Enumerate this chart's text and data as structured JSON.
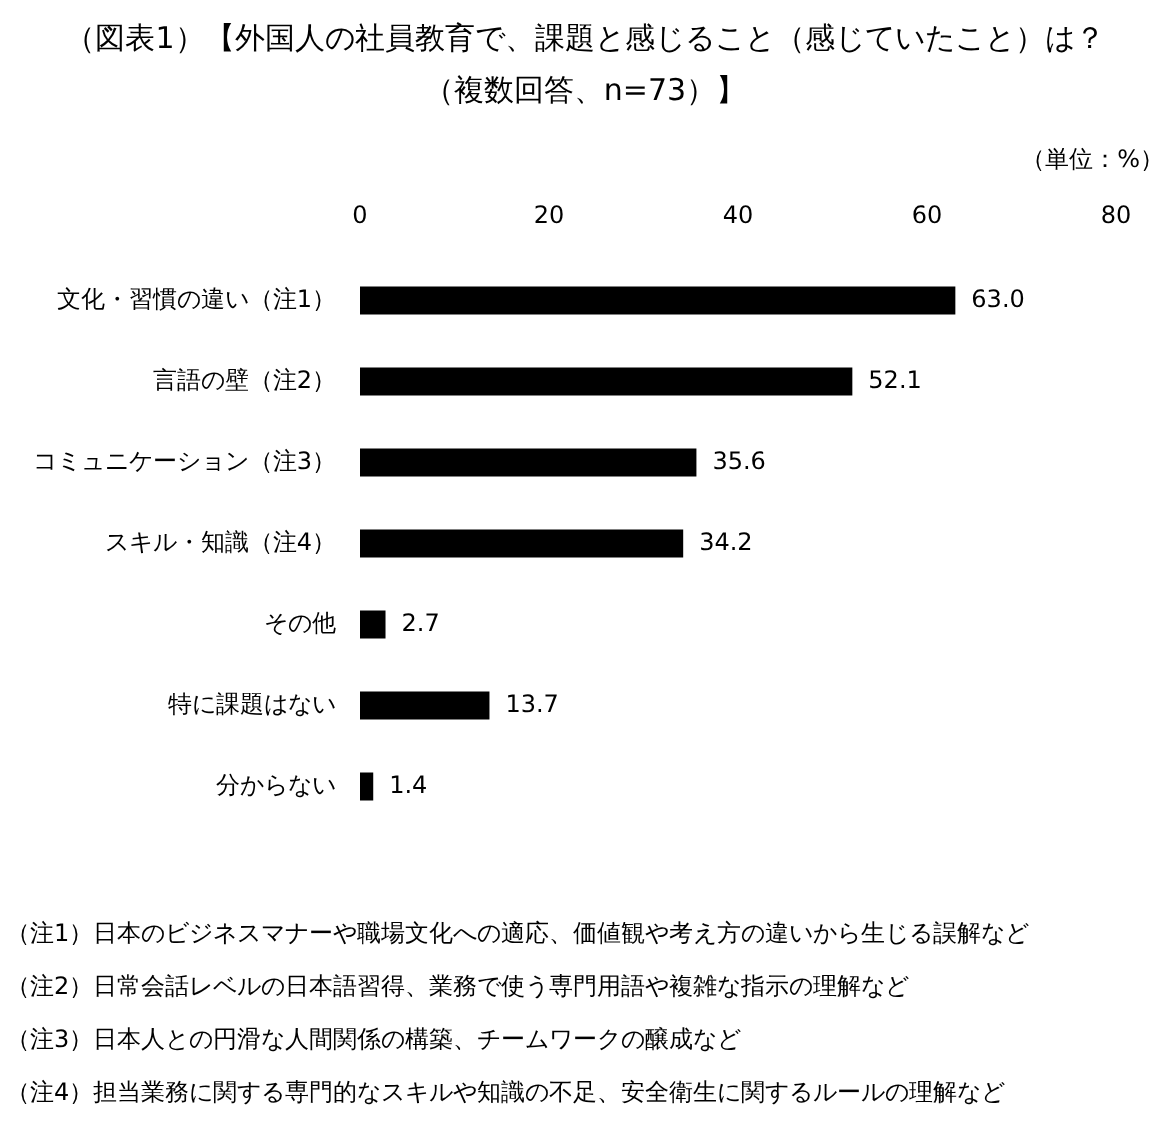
{
  "chart_data": {
    "type": "bar",
    "orientation": "horizontal",
    "title": "（図表1）【外国人の社員教育で、課題と感じること（感じていたこと）は？",
    "subtitle": "（複数回答、n=73）】",
    "categories": [
      "文化・習慣の違い（注1）",
      "言語の壁（注2）",
      "コミュニケーション（注3）",
      "スキル・知識（注4）",
      "その他",
      "特に課題はない",
      "分からない"
    ],
    "values": [
      63.0,
      52.1,
      35.6,
      34.2,
      2.7,
      13.7,
      1.4
    ],
    "value_labels": [
      "63.0",
      "52.1",
      "35.6",
      "34.2",
      "2.7",
      "13.7",
      "1.4"
    ],
    "color": "#000000",
    "xlim": [
      0,
      80
    ],
    "xticks": [
      0,
      20,
      40,
      60,
      80
    ],
    "grid": false,
    "annotations": [
      "（単位：%）",
      "（注1）日本のビジネスマナーや職場文化への適応、価値観や考え方の違いから生じる誤解など",
      "（注2）日常会話レベルの日本語習得、業務で使う専門用語や複雑な指示の理解など",
      "（注3）日本人との円滑な人間関係の構築、チームワークの醸成など",
      "（注4）担当業務に関する専門的なスキルや知識の不足、安全衛生に関するルールの理解など"
    ]
  }
}
